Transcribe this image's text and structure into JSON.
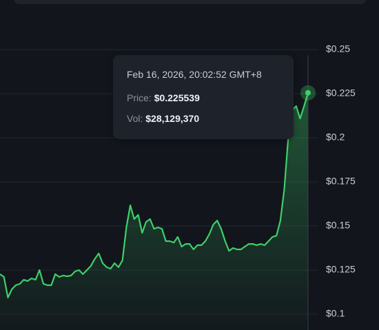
{
  "chart_data": {
    "type": "line",
    "series": [
      {
        "color": "#3fd06a",
        "values": [
          0.1227,
          0.1211,
          0.1094,
          0.1141,
          0.1164,
          0.1172,
          0.1195,
          0.1188,
          0.1203,
          0.1195,
          0.125,
          0.1172,
          0.1164,
          0.1164,
          0.1227,
          0.1211,
          0.1219,
          0.1215,
          0.1219,
          0.1242,
          0.125,
          0.1227,
          0.125,
          0.1273,
          0.1313,
          0.1344,
          0.1289,
          0.1266,
          0.1258,
          0.1289,
          0.1266,
          0.1305,
          0.1492,
          0.1617,
          0.1539,
          0.1563,
          0.1461,
          0.1523,
          0.1539,
          0.1484,
          0.1492,
          0.1484,
          0.1414,
          0.1414,
          0.1406,
          0.1438,
          0.1383,
          0.1398,
          0.1398,
          0.1367,
          0.1391,
          0.1391,
          0.1414,
          0.1453,
          0.1508,
          0.1531,
          0.1484,
          0.1414,
          0.1359,
          0.1375,
          0.1367,
          0.1367,
          0.1383,
          0.1398,
          0.1398,
          0.1391,
          0.1398,
          0.1391,
          0.1414,
          0.1438,
          0.1445,
          0.1531,
          0.1711,
          0.2,
          0.2156,
          0.218,
          0.2109,
          0.218,
          0.2255
        ]
      }
    ],
    "ylim": [
      0.1,
      0.25
    ],
    "yticks": [
      {
        "value": 0.1,
        "label": "$0.1"
      },
      {
        "value": 0.125,
        "label": "$0.125"
      },
      {
        "value": 0.15,
        "label": "$0.15"
      },
      {
        "value": 0.175,
        "label": "$0.175"
      },
      {
        "value": 0.2,
        "label": "$0.2"
      },
      {
        "value": 0.225,
        "label": "$0.225"
      },
      {
        "value": 0.25,
        "label": "$0.25"
      }
    ],
    "grid": true,
    "tooltip": {
      "date": "Feb 16, 2026, 20:02:52 GMT+8",
      "price_label": "Price:",
      "price": "$0.225539",
      "volume_label": "Vol:",
      "volume": "$28,129,370"
    }
  }
}
